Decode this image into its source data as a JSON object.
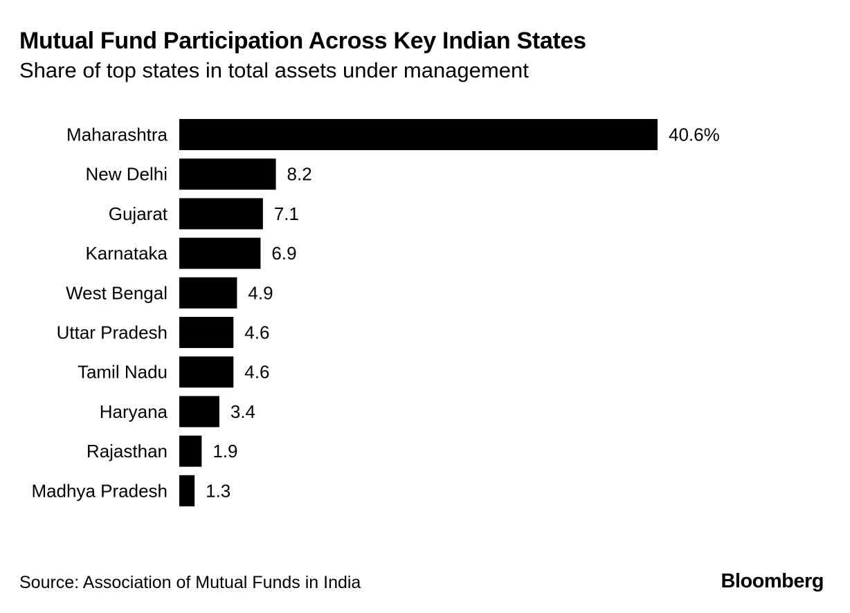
{
  "chart_data": {
    "type": "bar",
    "orientation": "horizontal",
    "title": "Mutual Fund Participation Across Key Indian States",
    "subtitle": "Share of top states in total assets under management",
    "categories": [
      "Maharashtra",
      "New Delhi",
      "Gujarat",
      "Karnataka",
      "West Bengal",
      "Uttar Pradesh",
      "Tamil Nadu",
      "Haryana",
      "Rajasthan",
      "Madhya Pradesh"
    ],
    "values": [
      40.6,
      8.2,
      7.1,
      6.9,
      4.9,
      4.6,
      4.6,
      3.4,
      1.9,
      1.3
    ],
    "value_labels": [
      "40.6%",
      "8.2",
      "7.1",
      "6.9",
      "4.9",
      "4.6",
      "4.6",
      "3.4",
      "1.9",
      "1.3"
    ],
    "xlabel": "",
    "ylabel": "",
    "xlim": [
      0,
      40.6
    ],
    "grid": false,
    "bar_color": "#000000"
  },
  "footer": {
    "source": "Source: Association of Mutual Funds in India",
    "brand": "Bloomberg"
  }
}
